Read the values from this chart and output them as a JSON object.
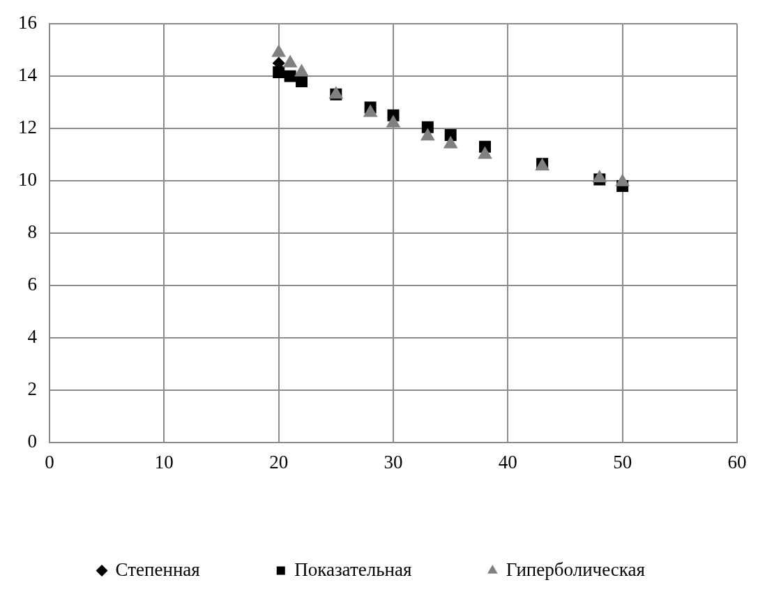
{
  "chart_data": {
    "type": "scatter",
    "x": [
      20,
      21,
      22,
      25,
      28,
      30,
      33,
      35,
      38,
      43,
      48,
      50
    ],
    "xlim": [
      0,
      60
    ],
    "xticks": [
      0,
      10,
      20,
      30,
      40,
      50,
      60
    ],
    "ylim": [
      0,
      16
    ],
    "yticks": [
      0,
      2,
      4,
      6,
      8,
      10,
      12,
      14,
      16
    ],
    "grid": true,
    "legend": "bottom",
    "series": [
      {
        "name": "Степенная",
        "color": "#000000",
        "marker": "diamond",
        "values": [
          14.5,
          null,
          null,
          null,
          null,
          null,
          null,
          null,
          null,
          null,
          null,
          null
        ]
      },
      {
        "name": "Показательная",
        "color": "#000000",
        "marker": "square",
        "values": [
          14.15,
          14.0,
          13.8,
          13.3,
          12.8,
          12.5,
          12.05,
          11.75,
          11.3,
          10.65,
          10.05,
          9.8
        ]
      },
      {
        "name": "Гиперболическая",
        "color": "#808080",
        "marker": "triangle",
        "values": [
          14.9,
          14.5,
          14.15,
          13.3,
          12.6,
          12.2,
          11.7,
          11.4,
          11.0,
          10.55,
          10.1,
          9.95
        ]
      }
    ]
  }
}
